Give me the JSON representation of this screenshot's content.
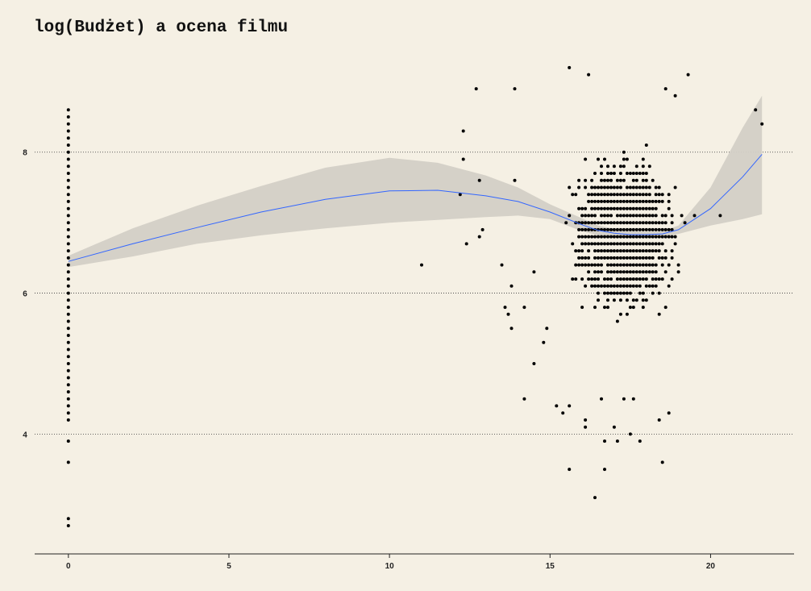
{
  "chart_data": {
    "type": "scatter",
    "title": "log(Budżet) a ocena filmu",
    "xlabel": "",
    "ylabel": "",
    "xlim": [
      -1.05,
      22.6
    ],
    "ylim": [
      2.3,
      9.45
    ],
    "x_ticks": [
      0,
      5,
      10,
      15,
      20
    ],
    "x_tick_labels": [
      "0",
      "5",
      "10",
      "15",
      "20"
    ],
    "y_ticks": [
      4,
      6,
      8
    ],
    "y_tick_labels": [
      "4",
      "6",
      "8"
    ],
    "grid": "horizontal-dotted",
    "colors": {
      "background": "#f5f0e4",
      "points": "#000000",
      "smooth_line": "#3366ff",
      "confidence_band": "#d3cfc6",
      "grid": "#333333"
    },
    "smooth": {
      "x": [
        0,
        2,
        4,
        6,
        8,
        10,
        11.5,
        13,
        14,
        15,
        16,
        16.5,
        17,
        17.5,
        18,
        18.5,
        19,
        20,
        21,
        21.6
      ],
      "y": [
        6.45,
        6.7,
        6.93,
        7.15,
        7.33,
        7.45,
        7.46,
        7.38,
        7.3,
        7.15,
        6.97,
        6.89,
        6.85,
        6.83,
        6.83,
        6.84,
        6.9,
        7.2,
        7.65,
        7.97
      ],
      "lower": [
        6.37,
        6.52,
        6.7,
        6.82,
        6.92,
        7.0,
        7.04,
        7.08,
        7.1,
        7.05,
        6.88,
        6.82,
        6.79,
        6.78,
        6.79,
        6.8,
        6.84,
        6.96,
        7.05,
        7.12
      ],
      "upper": [
        6.53,
        6.92,
        7.24,
        7.52,
        7.78,
        7.92,
        7.85,
        7.67,
        7.5,
        7.26,
        7.06,
        6.96,
        6.91,
        6.88,
        6.87,
        6.88,
        6.96,
        7.5,
        8.35,
        8.8
      ]
    },
    "series": [
      {
        "points_zero_x": {
          "x": 0,
          "y_from": 4.2,
          "y_to": 8.6,
          "y_step": 0.1,
          "extra_y": [
            3.9,
            3.6,
            2.8,
            2.7
          ]
        },
        "outliers": [
          [
            11,
            6.4
          ],
          [
            12.2,
            7.4
          ],
          [
            12.4,
            6.7
          ],
          [
            12.3,
            7.9
          ],
          [
            12.3,
            8.3
          ],
          [
            12.7,
            8.9
          ],
          [
            12.8,
            7.6
          ],
          [
            12.8,
            6.8
          ],
          [
            12.9,
            6.9
          ],
          [
            13.5,
            6.4
          ],
          [
            13.6,
            5.8
          ],
          [
            13.7,
            5.7
          ],
          [
            13.8,
            5.5
          ],
          [
            13.8,
            6.1
          ],
          [
            13.9,
            7.6
          ],
          [
            14.2,
            4.5
          ],
          [
            14.2,
            5.8
          ],
          [
            14.5,
            5.0
          ],
          [
            14.5,
            6.3
          ],
          [
            14.8,
            5.3
          ],
          [
            14.9,
            5.5
          ],
          [
            15.2,
            4.4
          ],
          [
            15.4,
            4.3
          ],
          [
            15.6,
            3.5
          ],
          [
            15.6,
            4.4
          ],
          [
            16.1,
            4.1
          ],
          [
            16.1,
            4.2
          ],
          [
            16.4,
            3.1
          ],
          [
            16.6,
            4.5
          ],
          [
            16.7,
            3.5
          ],
          [
            16.7,
            3.9
          ],
          [
            17.0,
            4.1
          ],
          [
            17.1,
            3.9
          ],
          [
            17.3,
            4.5
          ],
          [
            17.5,
            4.0
          ],
          [
            17.6,
            4.5
          ],
          [
            17.8,
            3.9
          ],
          [
            18.4,
            4.2
          ],
          [
            18.5,
            3.6
          ],
          [
            18.7,
            4.3
          ],
          [
            19.5,
            7.1
          ],
          [
            20.3,
            7.1
          ],
          [
            21.4,
            8.6
          ],
          [
            21.6,
            8.4
          ],
          [
            19.3,
            9.1
          ],
          [
            16.2,
            9.1
          ],
          [
            15.6,
            9.2
          ],
          [
            13.9,
            8.9
          ],
          [
            18.6,
            8.9
          ],
          [
            18.9,
            8.8
          ]
        ],
        "dense": {
          "seed": 7,
          "x_range": [
            13.6,
            19.3
          ],
          "x_step": 0.1,
          "y_range": [
            4.8,
            8.8
          ],
          "y_step": 0.1,
          "count": 1500
        }
      }
    ]
  }
}
